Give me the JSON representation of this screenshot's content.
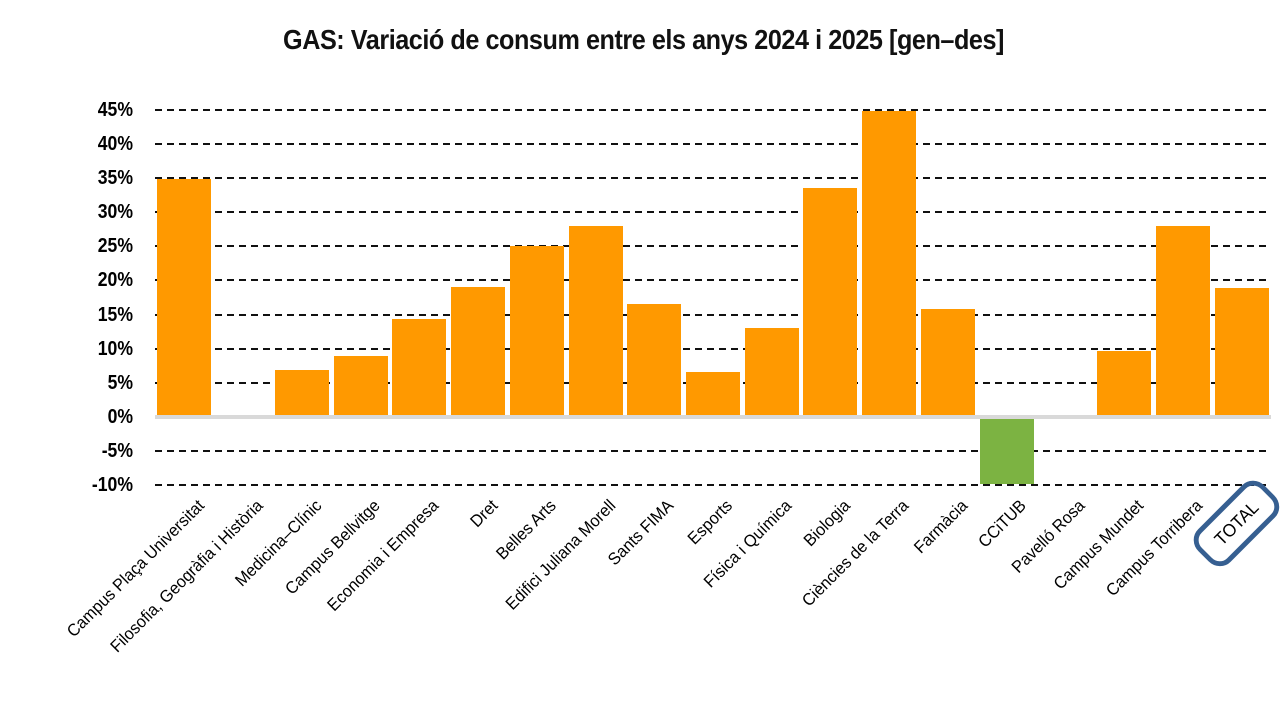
{
  "title": "GAS: Variació de consum entre els anys 2024 i 2025 [gen–des]",
  "chart_data": {
    "type": "bar",
    "title": "GAS: Variació de consum entre els anys 2024 i 2025 [gen–des]",
    "categories": [
      "Campus Plaça Universitat",
      "Filosofia, Geogràfia i Història",
      "Medicina–Clínic",
      "Campus Bellvitge",
      "Economia i Empresa",
      "Dret",
      "Belles Arts",
      "Edifici Juliana Morell",
      "Sants FIMA",
      "Esports",
      "Física i Química",
      "Biologia",
      "Ciències de la Terra",
      "Farmàcia",
      "CCiTUB",
      "Pavelló Rosa",
      "Campus Mundet",
      "Campus Torribera",
      "TOTAL"
    ],
    "values": [
      34.9,
      null,
      6.8,
      8.9,
      14.3,
      19.0,
      25.1,
      28.0,
      16.6,
      6.6,
      13.1,
      33.5,
      44.9,
      15.8,
      -9.9,
      null,
      9.6,
      28.0,
      18.9
    ],
    "unit": "%",
    "xlabel": "",
    "ylabel": "",
    "ylim": [
      -10,
      45
    ],
    "ytick_step": 5,
    "ytick_labels": [
      "45%",
      "40%",
      "35%",
      "30%",
      "25%",
      "20%",
      "15%",
      "10%",
      "5%",
      "0%",
      "-5%",
      "-10%"
    ],
    "grid": "horizontal-dashed",
    "legend": "none",
    "highlight_category": "TOTAL",
    "colors": {
      "positive_bar": "#FF9900",
      "negative_bar": "#7CB342",
      "highlight_box": "#365F91",
      "axis_line": "#D9D9D9",
      "gridline": "#111111",
      "text": "#000000"
    }
  }
}
